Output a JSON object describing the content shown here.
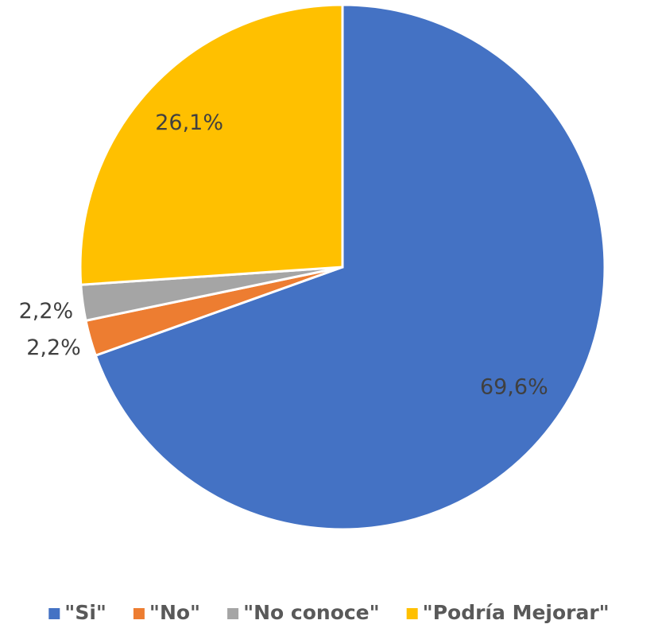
{
  "chart_data": {
    "type": "pie",
    "categories": [
      "\"Si\"",
      "\"No\"",
      "\"No conoce\"",
      "\"Podría Mejorar\""
    ],
    "values": [
      69.6,
      2.2,
      2.2,
      26.1
    ],
    "value_labels": [
      "69,6%",
      "2,2%",
      "2,2%",
      "26,1%"
    ],
    "colors": [
      "#4472c4",
      "#ed7d31",
      "#a5a5a5",
      "#ffc000"
    ],
    "legend": "bottom"
  }
}
